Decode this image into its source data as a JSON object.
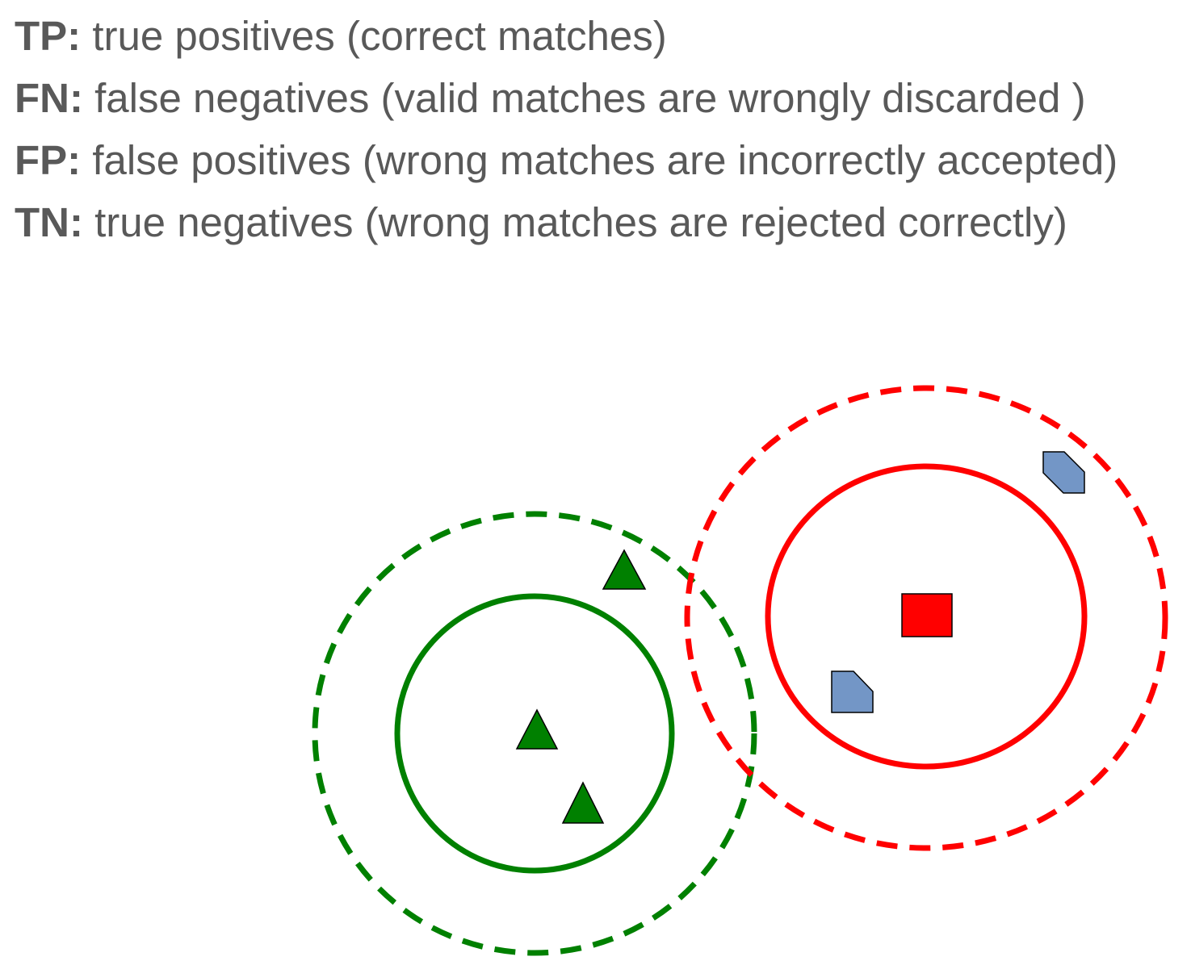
{
  "definitions": [
    {
      "term": "TP:",
      "text": "true positives (correct matches)"
    },
    {
      "term": "FN:",
      "text": "false negatives (valid matches are wrongly discarded )"
    },
    {
      "term": "FP:",
      "text": "false positives (wrong matches are incorrectly accepted)"
    },
    {
      "term": "TN:",
      "text": "true negatives (wrong matches are rejected correctly)"
    }
  ],
  "colors": {
    "text": "#595959",
    "green": "#008000",
    "red": "#ff0000",
    "blue_shape": "#7396c6",
    "outline": "#000000"
  },
  "icons": {
    "green_markers": "triangle-icon",
    "red_marker": "square-icon",
    "blue_markers": "cut-corner-square-icon"
  }
}
